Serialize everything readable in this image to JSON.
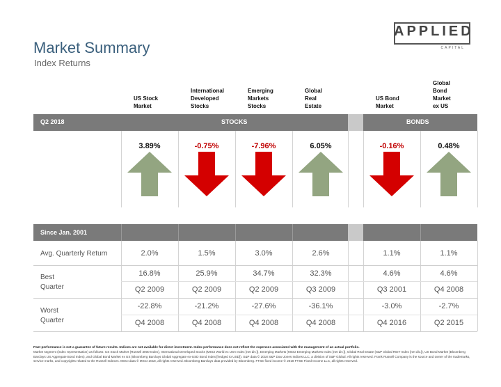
{
  "header": {
    "title": "Market Summary",
    "subtitle": "Index Returns"
  },
  "logo": {
    "main": "APPLIED",
    "sub": "CAPITAL"
  },
  "columns": [
    {
      "label": "US Stock\nMarket"
    },
    {
      "label": "International\nDeveloped\nStocks"
    },
    {
      "label": "Emerging\nMarkets\nStocks"
    },
    {
      "label": "Global\nReal\nEstate"
    },
    {
      "label": "US Bond\nMarket"
    },
    {
      "label": "Global\nBond\nMarket\nex US"
    }
  ],
  "quarter_band": {
    "period": "Q2 2018",
    "stocks": "STOCKS",
    "bonds": "BONDS"
  },
  "returns": [
    {
      "value": "3.89%",
      "direction": "up"
    },
    {
      "value": "-0.75%",
      "direction": "down"
    },
    {
      "value": "-7.96%",
      "direction": "down"
    },
    {
      "value": "6.05%",
      "direction": "up"
    },
    {
      "value": "-0.16%",
      "direction": "down"
    },
    {
      "value": "0.48%",
      "direction": "up"
    }
  ],
  "colors": {
    "up": "#93a581",
    "down": "#d40000",
    "band": "#7a7a7a",
    "gap": "#c9c9c9",
    "title": "#3a5f7c"
  },
  "since_band": {
    "label": "Since Jan. 2001"
  },
  "avg_row": {
    "label": "Avg. Quarterly Return",
    "values": [
      "2.0%",
      "1.5%",
      "3.0%",
      "2.6%",
      "1.1%",
      "1.1%"
    ]
  },
  "best": {
    "label_line1": "Best",
    "label_line2": "Quarter",
    "values": [
      "16.8%",
      "25.9%",
      "34.7%",
      "32.3%",
      "4.6%",
      "4.6%"
    ],
    "dates": [
      "Q2 2009",
      "Q2 2009",
      "Q2 2009",
      "Q3 2009",
      "Q3 2001",
      "Q4 2008"
    ]
  },
  "worst": {
    "label_line1": "Worst",
    "label_line2": "Quarter",
    "values": [
      "-22.8%",
      "-21.2%",
      "-27.6%",
      "-36.1%",
      "-3.0%",
      "-2.7%"
    ],
    "dates": [
      "Q4 2008",
      "Q4 2008",
      "Q4 2008",
      "Q4 2008",
      "Q4 2016",
      "Q2 2015"
    ]
  },
  "footnote": {
    "bold": "Past performance is not a guarantee of future results. Indices are not available for direct investment. Index performance does not reflect the expenses associated with the management of an actual portfolio.",
    "text": "Market segment (index representation) as follows: US Stock Market (Russell 3000 Index), International Developed Stocks (MSCI World ex USA Index [net div.]), Emerging Markets (MSCI Emerging Markets Index [net div.]), Global Real Estate (S&P Global REIT Index [net div.]), US Bond Market (Bloomberg Barclays US Aggregate Bond Index), and Global Bond Market ex US (Bloomberg Barclays Global Aggregate ex-USD Bond Index [hedged to USD]). S&P data © 2018 S&P Dow Jones Indices LLC, a division of S&P Global. All rights reserved. Frank Russell Company is the source and owner of the trademarks, service marks, and copyrights related to the Russell Indexes. MSCI data © MSCI 2018, all rights reserved. Bloomberg Barclays data provided by Bloomberg. FTSE fixed income © 2018 FTSE Fixed Income LLC, all rights reserved."
  }
}
